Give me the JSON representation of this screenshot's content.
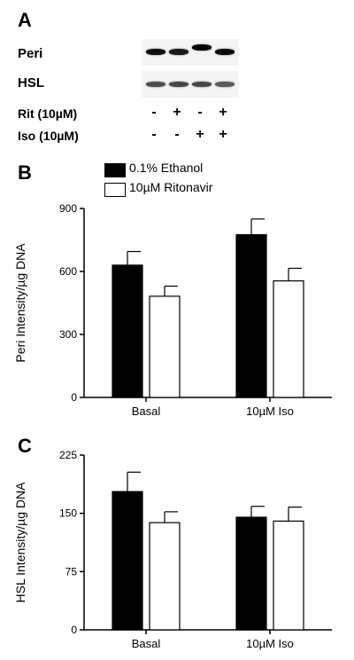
{
  "panel_a": {
    "letter": "A",
    "blots": [
      {
        "label": "Peri",
        "band_intensity": [
          0.95,
          0.9,
          1.0,
          0.95
        ],
        "band_shift": [
          0,
          0,
          1,
          0
        ]
      },
      {
        "label": "HSL",
        "band_intensity": [
          0.7,
          0.72,
          0.72,
          0.65
        ],
        "band_shift": [
          0,
          0,
          0,
          0
        ]
      }
    ],
    "treatments": [
      {
        "label": "Rit (10µM)",
        "signs": [
          "-",
          "+",
          "-",
          "+"
        ]
      },
      {
        "label": "Iso (10µM)",
        "signs": [
          "-",
          "-",
          "+",
          "+"
        ]
      }
    ]
  },
  "legend": [
    {
      "label": "0.1% Ethanol",
      "color": "#000000"
    },
    {
      "label": "10µM Ritonavir",
      "color": "#ffffff"
    }
  ],
  "chart_data": [
    {
      "panel": "B",
      "type": "bar",
      "ylabel": "Peri Intensity/µg DNA",
      "ylim": [
        0,
        900
      ],
      "yticks": [
        0,
        300,
        600,
        900
      ],
      "categories": [
        "Basal",
        "10µM Iso"
      ],
      "series": [
        {
          "name": "0.1% Ethanol",
          "color": "#000000",
          "values": [
            630,
            775
          ],
          "errors": [
            65,
            75
          ]
        },
        {
          "name": "10µM Ritonavir",
          "color": "#ffffff",
          "values": [
            482,
            555
          ],
          "errors": [
            48,
            60
          ]
        }
      ]
    },
    {
      "panel": "C",
      "type": "bar",
      "ylabel": "HSL Intensity/µg DNA",
      "ylim": [
        0,
        225
      ],
      "yticks": [
        0,
        75,
        150,
        225
      ],
      "categories": [
        "Basal",
        "10µM Iso"
      ],
      "series": [
        {
          "name": "0.1% Ethanol",
          "color": "#000000",
          "values": [
            178,
            145
          ],
          "errors": [
            25,
            14
          ]
        },
        {
          "name": "10µM Ritonavir",
          "color": "#ffffff",
          "values": [
            138,
            140
          ],
          "errors": [
            14,
            18
          ]
        }
      ]
    }
  ]
}
